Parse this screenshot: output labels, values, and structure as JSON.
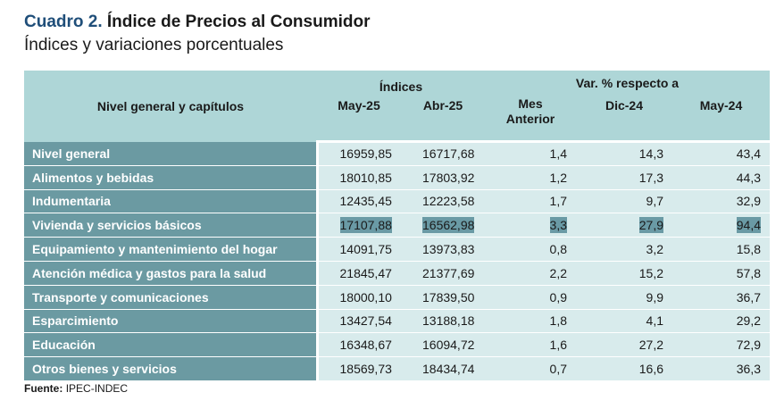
{
  "header": {
    "title_number": "Cuadro 2.",
    "title_text": "Índice de Precios al Consumidor",
    "subtitle": "Índices y variaciones porcentuales"
  },
  "table": {
    "col_label": "Nivel general y capítulos",
    "indices_label": "Índices",
    "var_label": "Var. % respecto a",
    "sub_headers": {
      "may25": "May-25",
      "abr25": "Abr-25",
      "mes_line1": "Mes",
      "mes_line2": "Anterior",
      "dic24": "Dic-24",
      "may24": "May-24"
    },
    "rows": [
      {
        "label": "Nivel general",
        "may25": "16959,85",
        "abr25": "16717,68",
        "mes": "1,4",
        "dic": "14,3",
        "may24": "43,4"
      },
      {
        "label": "Alimentos y bebidas",
        "may25": "18010,85",
        "abr25": "17803,92",
        "mes": "1,2",
        "dic": "17,3",
        "may24": "44,3"
      },
      {
        "label": "Indumentaria",
        "may25": "12435,45",
        "abr25": "12223,58",
        "mes": "1,7",
        "dic": "9,7",
        "may24": "32,9"
      },
      {
        "label": "Vivienda y servicios básicos",
        "may25": "17107,88",
        "abr25": "16562,98",
        "mes": "3,3",
        "dic": "27,9",
        "may24": "94,4"
      },
      {
        "label": "Equipamiento y mantenimiento del hogar",
        "may25": "14091,75",
        "abr25": "13973,83",
        "mes": "0,8",
        "dic": "3,2",
        "may24": "15,8"
      },
      {
        "label": "Atención médica y gastos para la salud",
        "may25": "21845,47",
        "abr25": "21377,69",
        "mes": "2,2",
        "dic": "15,2",
        "may24": "57,8"
      },
      {
        "label": "Transporte y comunicaciones",
        "may25": "18000,10",
        "abr25": "17839,50",
        "mes": "0,9",
        "dic": "9,9",
        "may24": "36,7"
      },
      {
        "label": "Esparcimiento",
        "may25": "13427,54",
        "abr25": "13188,18",
        "mes": "1,8",
        "dic": "4,1",
        "may24": "29,2"
      },
      {
        "label": "Educación",
        "may25": "16348,67",
        "abr25": "16094,72",
        "mes": "1,6",
        "dic": "27,2",
        "may24": "72,9"
      },
      {
        "label": "Otros bienes y servicios",
        "may25": "18569,73",
        "abr25": "18434,74",
        "mes": "0,7",
        "dic": "16,6",
        "may24": "36,3"
      }
    ]
  },
  "footer": {
    "source_label": "Fuente:",
    "source_value": "IPEC-INDEC"
  },
  "colors": {
    "title_number": "#1f4e79",
    "header_bg": "#aed6d7",
    "label_bg": "#6b9aa2",
    "cell_bg": "#d8ebec",
    "highlight": "#6a9aa5"
  }
}
